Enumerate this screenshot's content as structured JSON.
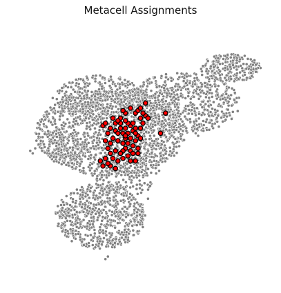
{
  "chart_data": {
    "type": "scatter",
    "title": "Metacell Assignments",
    "xlabel": "",
    "ylabel": "",
    "axes_visible": false,
    "grid": false,
    "legend": "none",
    "xlim": [
      0,
      100
    ],
    "ylim": [
      0,
      100
    ],
    "series": [
      {
        "role": "background cells",
        "color": "#808080",
        "edge_color": "#ffffff",
        "regions": [
          {
            "shape": "ellipse",
            "cx": 38,
            "cy": 58,
            "rx": 30,
            "ry": 17,
            "count": 1300
          },
          {
            "shape": "ellipse",
            "cx": 67,
            "cy": 70,
            "rx": 23,
            "ry": 12,
            "count": 650
          },
          {
            "shape": "ellipse",
            "cx": 86,
            "cy": 84,
            "rx": 12,
            "ry": 5.5,
            "count": 230
          },
          {
            "shape": "ellipse",
            "cx": 34,
            "cy": 72,
            "rx": 18,
            "ry": 9,
            "count": 350
          },
          {
            "shape": "ellipse",
            "cx": 34,
            "cy": 25,
            "rx": 18,
            "ry": 13,
            "count": 650
          },
          {
            "shape": "ellipse",
            "cx": 44,
            "cy": 42,
            "rx": 14,
            "ry": 9,
            "count": 200
          },
          {
            "shape": "ellipse",
            "cx": 20,
            "cy": 52,
            "rx": 7,
            "ry": 7,
            "count": 120
          }
        ],
        "outliers": [
          [
            6,
            51
          ],
          [
            8,
            52
          ],
          [
            7,
            50
          ],
          [
            15,
            72
          ],
          [
            44,
            56
          ],
          [
            73,
            57
          ],
          [
            72,
            58
          ],
          [
            71,
            59
          ],
          [
            37,
            9
          ],
          [
            36,
            8
          ],
          [
            9,
            62
          ],
          [
            53,
            32
          ]
        ]
      },
      {
        "role": "metacell members",
        "color": "#ff0000",
        "edge_color": "#000000",
        "points": [
          [
            52,
            70
          ],
          [
            58,
            58
          ],
          [
            41,
            55
          ],
          [
            43,
            58
          ],
          [
            44,
            56
          ],
          [
            42,
            60
          ],
          [
            45,
            58
          ],
          [
            46,
            56
          ],
          [
            45,
            54
          ],
          [
            44,
            52
          ],
          [
            43,
            51
          ],
          [
            46,
            51
          ],
          [
            47,
            53
          ],
          [
            48,
            55
          ],
          [
            49,
            57
          ],
          [
            47,
            59
          ],
          [
            48,
            60
          ],
          [
            46,
            61
          ],
          [
            45,
            62
          ],
          [
            44,
            60
          ],
          [
            42,
            62
          ],
          [
            40,
            59
          ],
          [
            39,
            56
          ],
          [
            38,
            54
          ],
          [
            37,
            52
          ],
          [
            36,
            55
          ],
          [
            38,
            50
          ],
          [
            39,
            48
          ],
          [
            41,
            47
          ],
          [
            43,
            48
          ],
          [
            45,
            49
          ],
          [
            47,
            50
          ],
          [
            49,
            52
          ],
          [
            50,
            56
          ],
          [
            50,
            60
          ],
          [
            47,
            62
          ],
          [
            44,
            63
          ],
          [
            42,
            64
          ],
          [
            40,
            62
          ],
          [
            38,
            60
          ],
          [
            37,
            58
          ],
          [
            35,
            61
          ],
          [
            36,
            62
          ],
          [
            40,
            51
          ],
          [
            43,
            54
          ],
          [
            48,
            58
          ],
          [
            41,
            63
          ],
          [
            39,
            64
          ],
          [
            44,
            66
          ],
          [
            46,
            68
          ],
          [
            43,
            67
          ],
          [
            48,
            66
          ],
          [
            50,
            64
          ],
          [
            51,
            62
          ],
          [
            52,
            65
          ],
          [
            53,
            64
          ],
          [
            51,
            66
          ],
          [
            49,
            67
          ],
          [
            50,
            68
          ],
          [
            60,
            66
          ],
          [
            36,
            48
          ],
          [
            38,
            45
          ],
          [
            40,
            44
          ],
          [
            34,
            47
          ],
          [
            35,
            45
          ],
          [
            37,
            46
          ],
          [
            42,
            50
          ],
          [
            46,
            47
          ],
          [
            48,
            47
          ],
          [
            49,
            50
          ],
          [
            41,
            58
          ],
          [
            44,
            57
          ]
        ]
      }
    ]
  }
}
